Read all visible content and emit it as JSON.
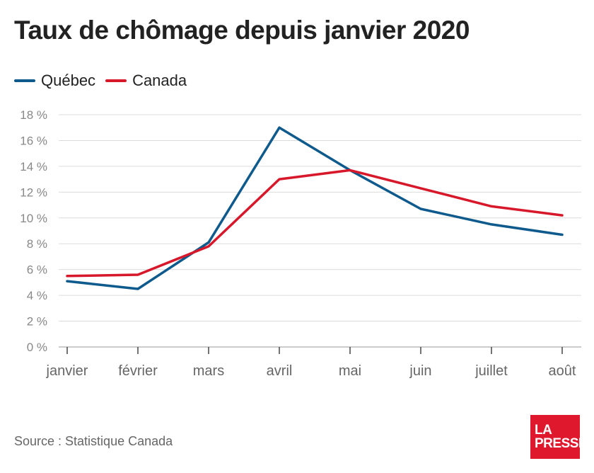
{
  "title": "Taux de chômage depuis janvier 2020",
  "source": "Source : Statistique Canada",
  "logo": {
    "line1": "LA",
    "line2": "PRESSE"
  },
  "chart_data": {
    "type": "line",
    "title": "Taux de chômage depuis janvier 2020",
    "categories": [
      "janvier",
      "février",
      "mars",
      "avril",
      "mai",
      "juin",
      "juillet",
      "août"
    ],
    "series": [
      {
        "name": "Québec",
        "color": "#0f5a8c",
        "values": [
          5.1,
          4.5,
          8.1,
          17.0,
          13.7,
          10.7,
          9.5,
          8.7
        ]
      },
      {
        "name": "Canada",
        "color": "#d7182a",
        "values": [
          5.5,
          5.6,
          7.8,
          13.0,
          13.7,
          12.3,
          10.9,
          10.2
        ]
      }
    ],
    "ylim": [
      0,
      18
    ],
    "yticks": [
      0,
      2,
      4,
      6,
      8,
      10,
      12,
      14,
      16,
      18
    ],
    "ytick_labels": [
      "0 %",
      "2 %",
      "4 %",
      "6 %",
      "8 %",
      "10 %",
      "12 %",
      "14 %",
      "16 %",
      "18 %"
    ],
    "grid": true,
    "legend_position": "top-left"
  }
}
